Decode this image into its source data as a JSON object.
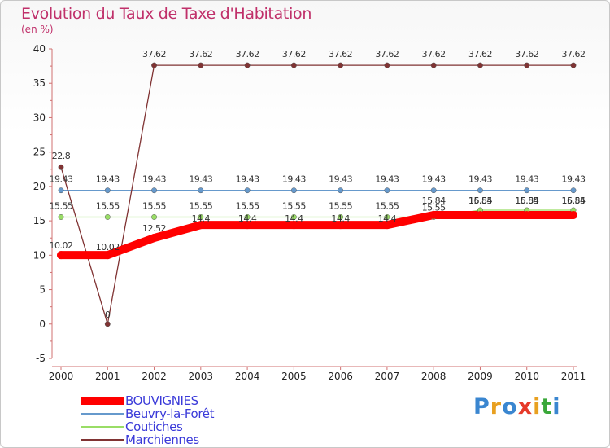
{
  "title": "Evolution du Taux de Taxe d'Habitation",
  "unit": "(en %)",
  "brand": "Proxiti",
  "chart_data": {
    "type": "line",
    "title": "Evolution du Taux de Taxe d'Habitation",
    "ylabel": "(en %)",
    "ylim": [
      -5,
      40
    ],
    "yticks": [
      "-5",
      "0",
      "5",
      "10",
      "15",
      "20",
      "25",
      "30",
      "35",
      "40"
    ],
    "categories": [
      "2000",
      "2001",
      "2002",
      "2003",
      "2004",
      "2005",
      "2006",
      "2007",
      "2008",
      "2009",
      "2010",
      "2011"
    ],
    "series": [
      {
        "name": "BOUVIGNIES",
        "color": "#ff0000",
        "values": [
          10.02,
          10.02,
          12.52,
          14.4,
          14.4,
          14.4,
          14.4,
          14.4,
          15.84,
          15.84,
          15.84,
          15.84
        ],
        "labels": [
          "10.02",
          "10.02",
          "12.52",
          "14.4",
          "14.4",
          "14.4",
          "14.4",
          "14.4",
          "15.84",
          "15.84",
          "15.84",
          "15.84"
        ]
      },
      {
        "name": "Beuvry-la-Forêt",
        "color": "#6699cc",
        "values": [
          19.43,
          19.43,
          19.43,
          19.43,
          19.43,
          19.43,
          19.43,
          19.43,
          19.43,
          19.43,
          19.43,
          19.43
        ],
        "labels": [
          "19.43",
          "19.43",
          "19.43",
          "19.43",
          "19.43",
          "19.43",
          "19.43",
          "19.43",
          "19.43",
          "19.43",
          "19.43",
          "19.43"
        ]
      },
      {
        "name": "Coutiches",
        "color": "#99dd66",
        "values": [
          15.55,
          15.55,
          15.55,
          15.55,
          15.55,
          15.55,
          15.55,
          15.55,
          15.55,
          16.55,
          16.55,
          16.55
        ],
        "labels": [
          "15.55",
          "15.55",
          "15.55",
          "15.55",
          "15.55",
          "15.55",
          "15.55",
          "15.55",
          "15.55",
          "16.55",
          "16.55",
          "16.55"
        ]
      },
      {
        "name": "Marchiennes",
        "color": "#803333",
        "values": [
          22.8,
          0,
          37.62,
          37.62,
          37.62,
          37.62,
          37.62,
          37.62,
          37.62,
          37.62,
          37.62,
          37.62
        ],
        "labels": [
          "22.8",
          "0",
          "37.62",
          "37.62",
          "37.62",
          "37.62",
          "37.62",
          "37.62",
          "37.62",
          "37.62",
          "37.62",
          "37.62"
        ]
      }
    ]
  }
}
